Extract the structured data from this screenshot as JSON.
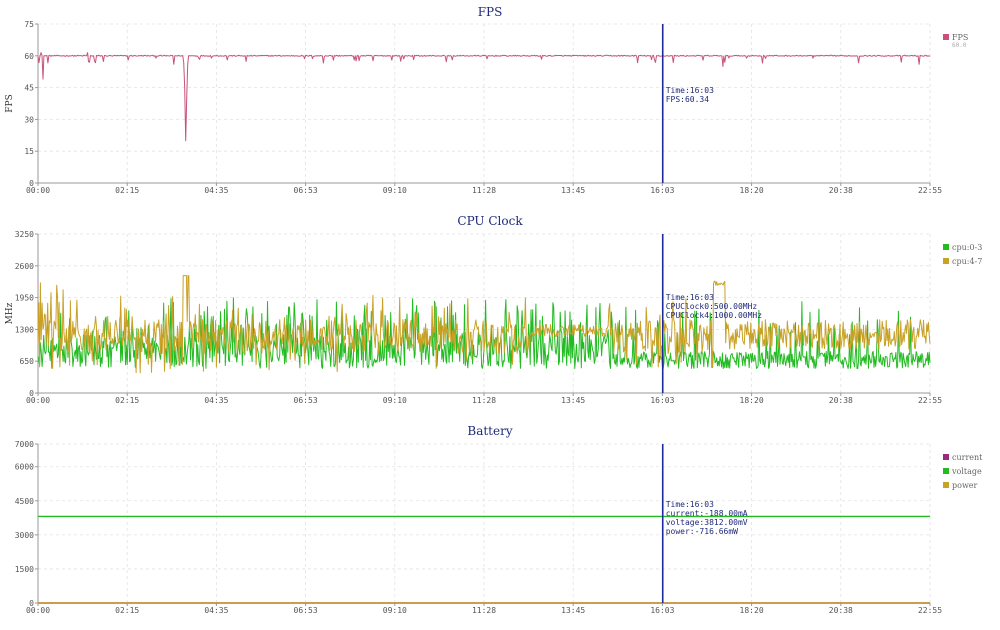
{
  "chart_data": [
    {
      "id": "fps",
      "type": "line",
      "title": "FPS",
      "ylabel": "FPS",
      "ylim": [
        0,
        75
      ],
      "yticks": [
        0,
        15,
        30,
        45,
        60,
        75
      ],
      "xtick_labels": [
        "00:00",
        "02:15",
        "04:35",
        "06:53",
        "09:10",
        "11:28",
        "13:45",
        "16:03",
        "18:20",
        "20:38",
        "22:55"
      ],
      "xrange_minutes": [
        0,
        1375
      ],
      "grid": true,
      "legend_position": "right",
      "series": [
        {
          "name": "FPS",
          "legend_sub": "60.0",
          "color": "#c8527a",
          "baseline": 60,
          "noise": 0.5,
          "dips": [
            {
              "t": 8,
              "v": 49
            },
            {
              "t": 4,
              "v": 61.5
            },
            {
              "t": 80,
              "v": 57
            },
            {
              "t": 76,
              "v": 61.5
            },
            {
              "t": 210,
              "v": 56
            },
            {
              "t": 228,
              "v": 20
            },
            {
              "t": 248,
              "v": 59
            },
            {
              "t": 488,
              "v": 58
            },
            {
              "t": 1055,
              "v": 55
            },
            {
              "t": 1330,
              "v": 57
            },
            {
              "t": 1358,
              "v": 56
            }
          ]
        }
      ],
      "tooltip": {
        "lines": [
          "Time:16:03",
          "FPS:60.34"
        ]
      }
    },
    {
      "id": "cpu",
      "type": "line",
      "title": "CPU Clock",
      "ylabel": "MHz",
      "ylim": [
        0,
        3250
      ],
      "yticks": [
        0,
        650,
        1300,
        1950,
        2600,
        3250
      ],
      "xtick_labels": [
        "00:00",
        "02:15",
        "04:35",
        "06:53",
        "09:10",
        "11:28",
        "13:45",
        "16:03",
        "18:20",
        "20:38",
        "22:55"
      ],
      "xrange_minutes": [
        0,
        1375
      ],
      "grid": true,
      "legend_position": "right",
      "series": [
        {
          "name": "cpu:0-3",
          "color": "#22bb22",
          "low": 500,
          "high": 1950,
          "typical": 800
        },
        {
          "name": "cpu:4-7",
          "color": "#c9a126",
          "low": 400,
          "high": 2400,
          "typical": 1150
        }
      ],
      "tooltip": {
        "lines": [
          "Time:16:03",
          "CPUClock0:500.00MHz",
          "CPUClock4:1000.00MHz"
        ]
      }
    },
    {
      "id": "battery",
      "type": "line",
      "title": "Battery",
      "ylabel": "",
      "ylim": [
        0,
        7000
      ],
      "yticks": [
        0,
        1500,
        3000,
        4500,
        6000,
        7000
      ],
      "xtick_labels": [
        "00:00",
        "02:15",
        "04:35",
        "06:53",
        "09:10",
        "11:28",
        "13:45",
        "16:03",
        "18:20",
        "20:38",
        "22:55"
      ],
      "xrange_minutes": [
        0,
        1375
      ],
      "grid": true,
      "legend_position": "right",
      "series": [
        {
          "name": "current",
          "color": "#9b2a7c",
          "value": -188
        },
        {
          "name": "voltage",
          "color": "#22bb22",
          "value": 3812
        },
        {
          "name": "power",
          "color": "#c9a126",
          "value": -716.66
        }
      ],
      "tooltip": {
        "lines": [
          "Time:16:03",
          "current:-188.00mA",
          "voltage:3812.00mV",
          "power:-716.66mW"
        ]
      }
    }
  ],
  "cursor": {
    "time_minutes": 963
  }
}
